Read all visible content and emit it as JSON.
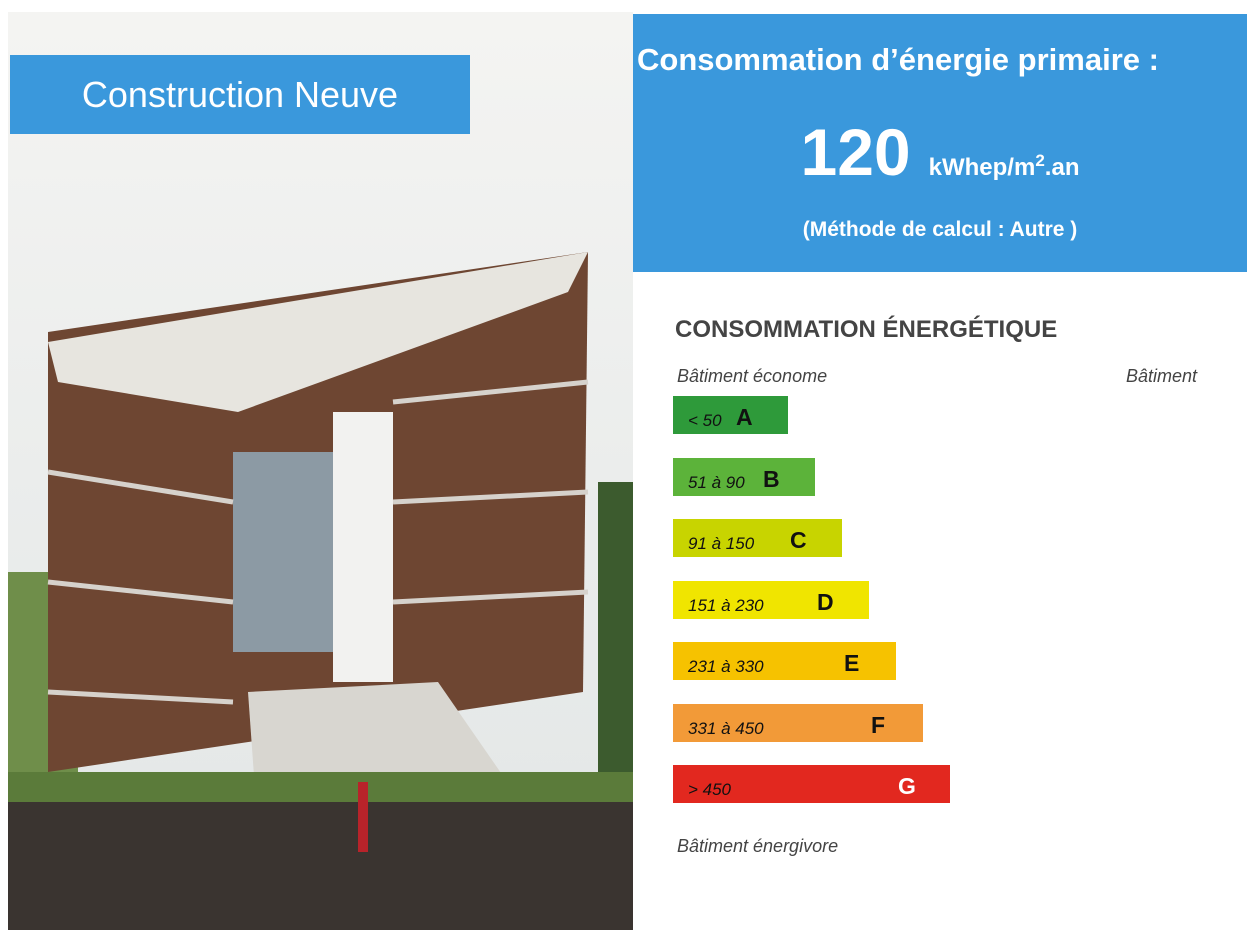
{
  "header": {
    "badge": "Construction Neuve"
  },
  "summary": {
    "title": "Consommation d’énergie primaire :",
    "value": "120",
    "unit_prefix": "kWhep/m",
    "unit_exponent": "2",
    "unit_suffix": ".an",
    "method": "(Méthode de calcul : Autre )"
  },
  "label": {
    "title": "CONSOMMATION ÉNERGÉTIQUE",
    "top_left": "Bâtiment économe",
    "top_right": "Bâtiment",
    "bottom": "Bâtiment énergivore",
    "bands": [
      {
        "range": "< 50",
        "letter": "A",
        "color": "#2e9a3a"
      },
      {
        "range": "51 à 90",
        "letter": "B",
        "color": "#5cb33a"
      },
      {
        "range": "91 à 150",
        "letter": "C",
        "color": "#c8d400"
      },
      {
        "range": "151 à 230",
        "letter": "D",
        "color": "#f0e500"
      },
      {
        "range": "231 à 330",
        "letter": "E",
        "color": "#f6c200"
      },
      {
        "range": "331 à 450",
        "letter": "F",
        "color": "#f29a38"
      },
      {
        "range": "> 450",
        "letter": "G",
        "color": "#e2281f"
      }
    ]
  }
}
